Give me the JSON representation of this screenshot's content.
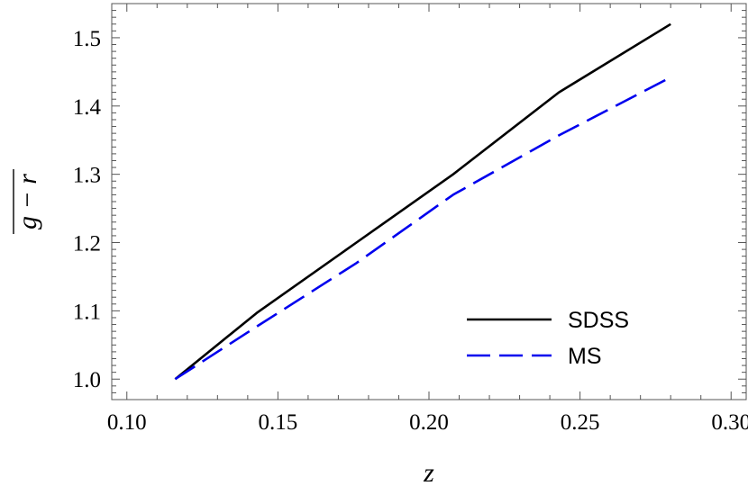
{
  "chart_data": {
    "type": "line",
    "title": "",
    "xlabel": "z",
    "ylabel": "g − r",
    "ylabel_overline": true,
    "xlim": [
      0.095,
      0.305
    ],
    "ylim": [
      0.97,
      1.55
    ],
    "x_ticks": [
      {
        "value": 0.1,
        "label": "0.10"
      },
      {
        "value": 0.15,
        "label": "0.15"
      },
      {
        "value": 0.2,
        "label": "0.20"
      },
      {
        "value": 0.25,
        "label": "0.25"
      },
      {
        "value": 0.3,
        "label": "0.30"
      }
    ],
    "y_ticks": [
      {
        "value": 1.0,
        "label": "1.0"
      },
      {
        "value": 1.1,
        "label": "1.1"
      },
      {
        "value": 1.2,
        "label": "1.2"
      },
      {
        "value": 1.3,
        "label": "1.3"
      },
      {
        "value": 1.4,
        "label": "1.4"
      },
      {
        "value": 1.5,
        "label": "1.5"
      }
    ],
    "grid": false,
    "legend_position": "bottom-right",
    "series": [
      {
        "name": "SDSS",
        "color": "#000000",
        "style": "solid",
        "x": [
          0.116,
          0.143,
          0.176,
          0.208,
          0.243,
          0.28
        ],
        "y": [
          1.0,
          1.097,
          1.2,
          1.3,
          1.42,
          1.52
        ]
      },
      {
        "name": "MS",
        "color": "#0000ee",
        "style": "dashed",
        "x": [
          0.116,
          0.143,
          0.176,
          0.208,
          0.243,
          0.28
        ],
        "y": [
          1.0,
          1.077,
          1.17,
          1.27,
          1.357,
          1.442
        ]
      }
    ]
  }
}
